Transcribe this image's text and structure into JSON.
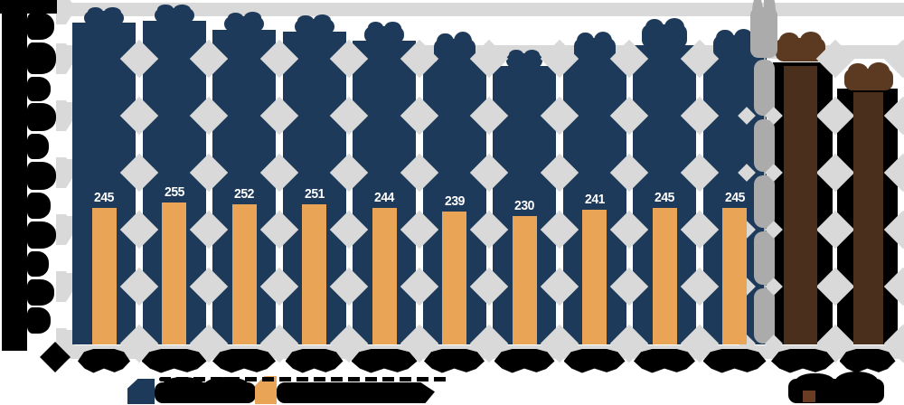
{
  "title_note": "statistical bar chart; all axis text, category labels and legend text are rendered as illegible ink blobs in the source image",
  "chart_data": {
    "type": "bar",
    "categories": [
      "",
      "",
      "",
      "",
      "",
      "",
      "",
      "",
      "",
      "",
      "",
      ""
    ],
    "categories_note": "12 category labels present on x-axis but obscured/illegible; last 2 categories separated by a gray divider line (projected values)",
    "series": [
      {
        "name": "series-1-obscured",
        "color": "#1e3a5a",
        "values": [
          577,
          581,
          564,
          560,
          544,
          507,
          500,
          510,
          536,
          516,
          null,
          null
        ],
        "values_note": "estimated from bar heights; data labels above bars are obscured navy blobs"
      },
      {
        "name": "series-2-obscured",
        "color": "#e9a455",
        "values": [
          245,
          255,
          252,
          251,
          244,
          239,
          230,
          241,
          245,
          245,
          null,
          null
        ],
        "value_labels": [
          "245",
          "255",
          "252",
          "251",
          "244",
          "239",
          "230",
          "241",
          "245",
          "245"
        ]
      },
      {
        "name": "projected-series-1-obscured",
        "color": "#000000",
        "values": [
          null,
          null,
          null,
          null,
          null,
          null,
          null,
          null,
          null,
          null,
          505,
          459
        ],
        "values_note": "estimated from bar heights; labels above bars are obscured brown blobs"
      },
      {
        "name": "projected-series-2-obscured",
        "color": "#4a2f1d",
        "values": [
          null,
          null,
          null,
          null,
          null,
          null,
          null,
          null,
          null,
          null,
          500,
          452
        ]
      }
    ],
    "ylim": [
      0,
      600
    ],
    "gridline_step": 100,
    "grid_style": "thick light-gray bands with diamond ornaments between bars",
    "legend_position": "bottom",
    "legend": [
      {
        "swatch_color": "#1e3a5a",
        "label": "",
        "label_note": "obscured black blob"
      },
      {
        "swatch_color": "#e9a455",
        "label": "",
        "label_note": "obscured black blob"
      },
      {
        "swatch_color": "#6a3c24",
        "label": "",
        "label_note": "obscured black blob, bottom right"
      }
    ]
  },
  "colors": {
    "navy": "#1e3a5a",
    "orange": "#e9a455",
    "projected_black": "#000000",
    "projected_brown": "#4a2f1d",
    "brown_blob": "#5c3a22",
    "brown_swatch": "#6a3c24",
    "grid_gray": "#d9d9d9",
    "divider_gray": "#ababab",
    "obscured_ink": "#000000",
    "value_label_text": "#ffffff"
  }
}
